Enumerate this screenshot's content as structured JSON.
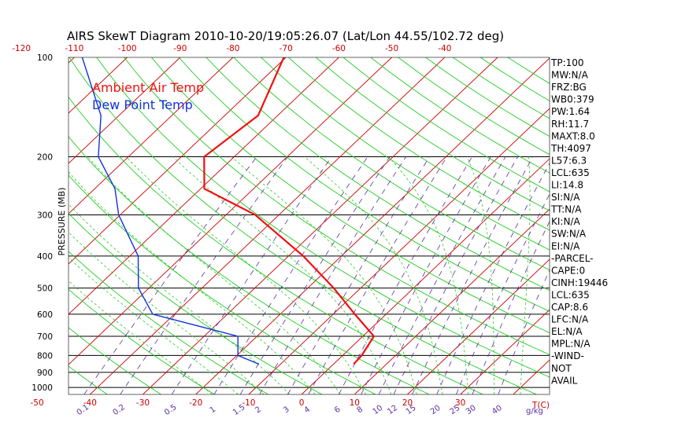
{
  "chart_data": {
    "type": "line",
    "title": "AIRS SkewT Diagram 2010-10-20/19:05:26.07 (Lat/Lon 44.55/102.72 deg)",
    "ylabel": "PRESSURE (MB)",
    "xlabel_temp": "T(C)",
    "xlabel_mixing": "g/kg",
    "pressure_ticks": [
      "100",
      "200",
      "300",
      "400",
      "500",
      "600",
      "700",
      "800",
      "900",
      "1000"
    ],
    "pressure_levels_drawn": [
      1000,
      900,
      800,
      700,
      600,
      500,
      400,
      300,
      200
    ],
    "ylim": [
      1050,
      100
    ],
    "top_temp_ticks": [
      "-120",
      "-110",
      "-100",
      "-90",
      "-80",
      "-70",
      "-60",
      "-50",
      "-40"
    ],
    "bottom_temp_ticks": [
      "-50",
      "-40",
      "-30",
      "-20",
      "-10",
      "0",
      "10",
      "20",
      "30"
    ],
    "mixing_ratio_ticks": [
      "0.1",
      "0.2",
      "0.5",
      "1",
      "1.5",
      "2",
      "3",
      "4",
      "6",
      "8",
      "10",
      "12",
      "15",
      "20",
      "25",
      "30",
      "40"
    ],
    "legend": [
      {
        "label": "Ambient Air Temp",
        "color": "#ee1111"
      },
      {
        "label": "Dew Point Temp",
        "color": "#1133dd"
      }
    ],
    "series": [
      {
        "name": "Ambient Air Temp",
        "color": "#ee1111",
        "points": [
          {
            "p": 850,
            "t": 3.8
          },
          {
            "p": 800,
            "t": 3.6
          },
          {
            "p": 700,
            "t": 2.1
          },
          {
            "p": 600,
            "t": -5.9
          },
          {
            "p": 500,
            "t": -15.1
          },
          {
            "p": 400,
            "t": -27.2
          },
          {
            "p": 300,
            "t": -44.5
          },
          {
            "p": 250,
            "t": -59.3
          },
          {
            "p": 200,
            "t": -65.7
          },
          {
            "p": 150,
            "t": -63.7
          },
          {
            "p": 100,
            "t": -70.4
          }
        ]
      },
      {
        "name": "Dew Point Temp",
        "color": "#1133dd",
        "points": [
          {
            "p": 850,
            "t": -14.1
          },
          {
            "p": 800,
            "t": -19.8
          },
          {
            "p": 700,
            "t": -23.6
          },
          {
            "p": 600,
            "t": -44.1
          },
          {
            "p": 500,
            "t": -52.0
          },
          {
            "p": 400,
            "t": -58.4
          },
          {
            "p": 300,
            "t": -70.3
          },
          {
            "p": 250,
            "t": -76.2
          },
          {
            "p": 200,
            "t": -85.7
          },
          {
            "p": 150,
            "t": -93.4
          },
          {
            "p": 100,
            "t": -108.5
          }
        ]
      }
    ],
    "stats": [
      "TP:100",
      "MW:N/A",
      "FRZ:BG",
      "WB0:379",
      "PW:1.64",
      "RH:11.7",
      "MAXT:8.0",
      "TH:4097",
      "L57:6.3",
      "LCL:635",
      "LI:14.8",
      "SI:N/A",
      "TT:N/A",
      "KI:N/A",
      "SW:N/A",
      "EI:N/A",
      "-PARCEL-",
      "CAPE:0",
      "CINH:19446",
      "LCL:635",
      "CAP:8.6",
      "LFC:N/A",
      "EL:N/A",
      "MPL:N/A",
      "-WIND-",
      "NOT",
      "AVAIL"
    ],
    "colors": {
      "isotherm": "#cc0000",
      "dry_adiabat": "#22cc22",
      "moist_adiabat": "#22cc22",
      "mixing_ratio": "#5a2ca0",
      "isobar": "#000000"
    }
  }
}
